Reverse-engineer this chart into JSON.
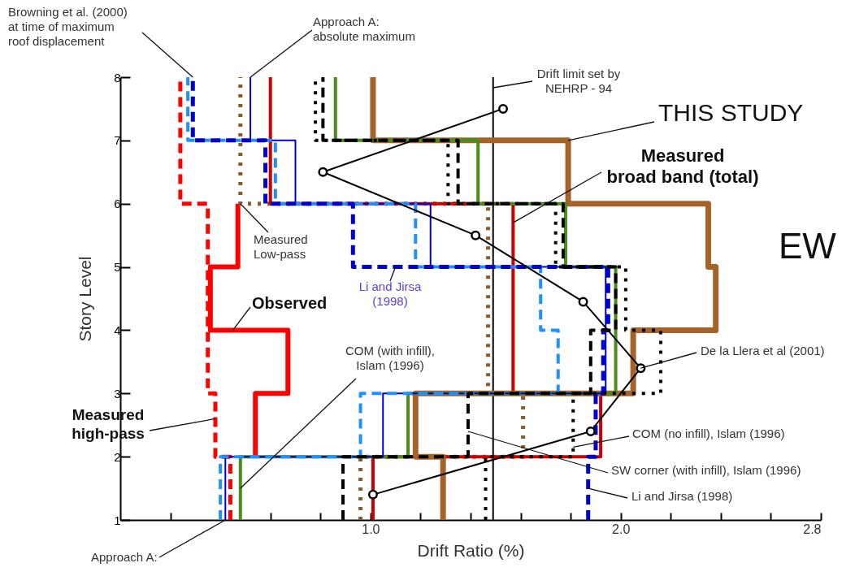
{
  "chart_data": {
    "type": "line",
    "xlabel": "Drift Ratio (%)",
    "ylabel": "Story Level",
    "xlim": [
      0,
      2.8
    ],
    "ylim": [
      1,
      8
    ],
    "xticks": [
      {
        "value": 0.2,
        "label": null
      },
      {
        "value": 0.4,
        "label": null
      },
      {
        "value": 0.6,
        "label": null
      },
      {
        "value": 0.8,
        "label": null
      },
      {
        "value": 1,
        "label": "1.0"
      },
      {
        "value": 1.2,
        "label": null
      },
      {
        "value": 1.4,
        "label": null
      },
      {
        "value": 1.6,
        "label": null
      },
      {
        "value": 1.8,
        "label": null
      },
      {
        "value": 2,
        "label": "2.0"
      },
      {
        "value": 2.2,
        "label": null
      },
      {
        "value": 2.4,
        "label": null
      },
      {
        "value": 2.6,
        "label": null
      },
      2.8
    ],
    "yticks": [
      1,
      2,
      3,
      4,
      5,
      6,
      7,
      8
    ],
    "grid": false,
    "series": [
      {
        "color": "#ff0000",
        "line_style": "solid",
        "x": [
          0.54,
          0.54,
          0.67,
          0.67,
          0.36,
          0.36,
          0.47,
          0.47
        ],
        "values": [
          2,
          3,
          3,
          4,
          4,
          5,
          5,
          6
        ]
      },
      {
        "color": "#ff0000",
        "line_style": "dashed",
        "x": [
          0.44,
          0.44,
          0.38,
          0.38,
          0.35,
          0.35,
          0.24,
          0.24
        ],
        "values": [
          1,
          2,
          2,
          3,
          3,
          6,
          6,
          8
        ]
      },
      {
        "color": "#8b5a2b",
        "line_style": "dotted",
        "x": [
          0.96,
          0.96,
          1.61,
          1.61,
          1.47,
          1.47,
          0.48,
          0.48
        ],
        "values": [
          1,
          2,
          2,
          3,
          3,
          6,
          6,
          8
        ]
      },
      {
        "color": "#cc0000",
        "line_style": "solid",
        "x": [
          1.01,
          1.01,
          1.92,
          1.92,
          1.57,
          1.57,
          0.6,
          0.6
        ],
        "values": [
          1,
          2,
          2,
          3,
          3,
          6,
          6,
          8
        ]
      },
      {
        "color": "#a5632a",
        "line_style": "solid",
        "x": [
          1.29,
          1.29,
          1.18,
          1.18,
          2.05,
          2.05,
          2.38,
          2.38,
          2.35,
          2.35,
          1.79,
          1.79,
          1.01,
          1.01
        ],
        "values": [
          1,
          2,
          2,
          3,
          3,
          4,
          4,
          5,
          5,
          6,
          6,
          7,
          7,
          8
        ]
      },
      {
        "color": "#4a8c1c",
        "line_style": "solid",
        "x": [
          0.48,
          0.48,
          1.15,
          1.15,
          1.98,
          1.98,
          1.78,
          1.78,
          1.43,
          1.43,
          0.86,
          0.86
        ],
        "values": [
          1,
          2,
          2,
          3,
          3,
          5,
          5,
          6,
          6,
          7,
          7,
          8
        ]
      },
      {
        "color": "#0000cc",
        "line_style": "solid",
        "x": [
          0.42,
          0.42,
          1.05,
          1.05,
          1.94,
          1.94,
          1.24,
          1.24,
          0.7,
          0.7,
          0.52,
          0.52
        ],
        "values": [
          1,
          2,
          2,
          3,
          3,
          5,
          5,
          6,
          6,
          7,
          7,
          8
        ]
      },
      {
        "color": "#1e90ff",
        "line_style": "dashed",
        "x": [
          0.4,
          0.4,
          0.96,
          0.96,
          1.75,
          1.75,
          1.68,
          1.68,
          1.18,
          1.18,
          0.62,
          0.62,
          0.27,
          0.27
        ],
        "values": [
          1,
          2,
          2,
          3,
          3,
          4,
          4,
          5,
          5,
          6,
          6,
          7,
          7,
          8
        ]
      },
      {
        "color": "#0000cc",
        "line_style": "dashed",
        "x": [
          1.87,
          1.87,
          1.9,
          1.9,
          1.93,
          1.93,
          1.95,
          1.95,
          0.93,
          0.93,
          0.58,
          0.58,
          0.29,
          0.29
        ],
        "values": [
          1,
          2,
          2,
          3,
          3,
          4,
          4,
          5,
          5,
          6,
          6,
          7,
          7,
          8
        ]
      },
      {
        "color": "#000000",
        "line_style": "dashed",
        "x": [
          0.89,
          0.89,
          1.39,
          1.39,
          1.88,
          1.88,
          1.98,
          1.98,
          1.77,
          1.77,
          1.35,
          1.35,
          0.81,
          0.81
        ],
        "values": [
          1,
          2,
          2,
          3,
          3,
          4,
          4,
          5,
          5,
          6,
          6,
          7,
          7,
          8
        ]
      },
      {
        "color": "#000000",
        "line_style": "dotted",
        "x": [
          1.46,
          1.46,
          1.81,
          1.81,
          2.16,
          2.16,
          2.02,
          2.02,
          1.74,
          1.74,
          1.31,
          1.31,
          0.78,
          0.78
        ],
        "values": [
          1,
          2,
          2,
          3,
          3,
          4,
          4,
          5,
          5,
          6,
          6,
          7,
          7,
          8
        ]
      },
      {
        "color": "#000000",
        "line_style": "solid",
        "marker": "circle",
        "x": [
          1.01,
          1.88,
          2.08,
          1.85,
          1.42,
          0.81,
          1.53
        ],
        "values": [
          1.4,
          2.4,
          3.4,
          4.45,
          5.5,
          6.5,
          7.5
        ]
      }
    ],
    "ref_lines": [
      {
        "axis": "x",
        "value": 1.49,
        "label": "Drift limit set by\nNEHRP - 94"
      }
    ],
    "annotations": [
      {
        "text": "Browning et al. (2000)\nat time of maximum\nroof displacement",
        "x": 0.29,
        "y": 8
      },
      {
        "text": "Approach A:\nabsolute maximum",
        "x": 0.52,
        "y": 8
      },
      {
        "text": "THIS STUDY",
        "x": 1.79,
        "y": 7
      },
      {
        "text": "Measured\nbroad band (total)",
        "x": 1.57,
        "y": 5.7
      },
      "EW",
      {
        "text": "Measured\nLow-pass",
        "x": 0.48,
        "y": 6
      },
      {
        "text": "Li and Jirsa\n(1998)",
        "x": 1.1,
        "y": 5
      },
      {
        "text": "Observed",
        "x": 0.45,
        "y": 4
      },
      {
        "text": "COM (with infill),\nIslam (1996)",
        "x": 0.48,
        "y": 1.5
      },
      {
        "text": "De la Llera et al (2001)",
        "x": 2.08,
        "y": 3.4
      },
      {
        "text": "Measured\nhigh-pass",
        "x": 0.38,
        "y": 2.6
      },
      {
        "text": "COM (no infill), Islam (1996)",
        "x": 1.81,
        "y": 2.15
      },
      {
        "text": "SW corner (with infill), Islam (1996)",
        "x": 1.39,
        "y": 2.4
      },
      {
        "text": "Li and Jirsa (1998)",
        "x": 1.87,
        "y": 1.5
      },
      {
        "text": "Approach A:",
        "x": 0.42,
        "y": 1
      }
    ]
  }
}
